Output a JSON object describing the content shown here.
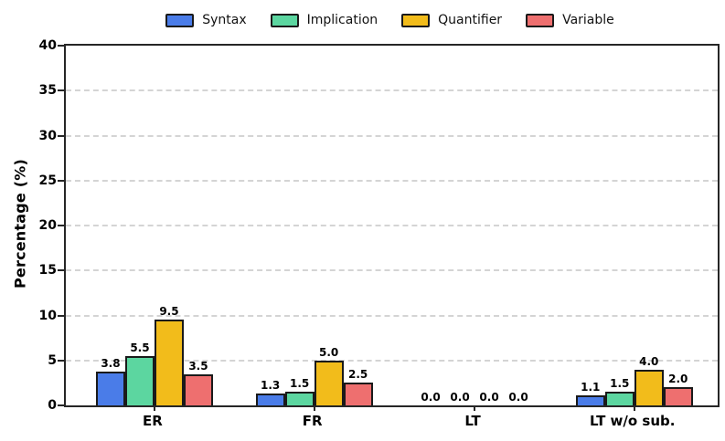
{
  "chart_data": {
    "type": "bar",
    "title": "",
    "categories": [
      "ER",
      "FR",
      "LT",
      "LT w/o sub."
    ],
    "series": [
      {
        "name": "Syntax",
        "color": "#4a7ce8",
        "values": [
          3.8,
          1.3,
          0.0,
          1.1
        ]
      },
      {
        "name": "Implication",
        "color": "#5cd6a0",
        "values": [
          5.5,
          1.5,
          0.0,
          1.5
        ]
      },
      {
        "name": "Quantifier",
        "color": "#f2bc1b",
        "values": [
          9.5,
          5.0,
          0.0,
          4.0
        ]
      },
      {
        "name": "Variable",
        "color": "#ee6f6f",
        "values": [
          3.5,
          2.5,
          0.0,
          2.0
        ]
      }
    ],
    "xlabel": "",
    "ylabel": "Percentage (%)",
    "ylim": [
      0,
      40
    ],
    "yticks": [
      0,
      5,
      10,
      15,
      20,
      25,
      30,
      35,
      40
    ],
    "grid": "horizontal dashed",
    "legend_position": "top center",
    "value_labels": "one decimal above each bar",
    "bar_edge_color": "#1a1a1a",
    "grid_color": "#d4d4d4"
  }
}
